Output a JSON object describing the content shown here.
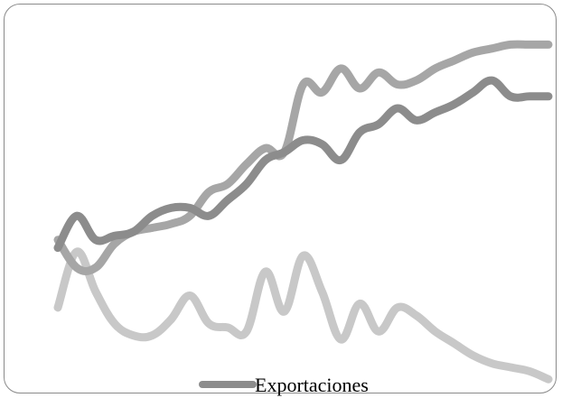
{
  "chart_data": {
    "type": "line",
    "title": "",
    "xlabel": "",
    "ylabel": "",
    "axes_visible": false,
    "grid": false,
    "legend_position": "bottom-center",
    "x": [
      1,
      2,
      3,
      4,
      5,
      6,
      7,
      8,
      9,
      10,
      11,
      12,
      13,
      14,
      15,
      16,
      17,
      18,
      19,
      20,
      21,
      22,
      23,
      24,
      25,
      26,
      27
    ],
    "ylim": [
      0,
      410
    ],
    "series": [
      {
        "name": "Exportaciones",
        "color": "#8c8c8c",
        "values": [
          150,
          190,
          160,
          165,
          170,
          190,
          200,
          200,
          190,
          210,
          230,
          260,
          270,
          285,
          280,
          260,
          295,
          305,
          325,
          310,
          320,
          330,
          345,
          360,
          340,
          340,
          340
        ]
      },
      {
        "name": "",
        "color": "#a6a6a6",
        "values": [
          160,
          125,
          125,
          155,
          170,
          175,
          180,
          190,
          220,
          230,
          255,
          275,
          270,
          355,
          345,
          375,
          350,
          370,
          355,
          360,
          375,
          385,
          395,
          400,
          405,
          405,
          405
        ]
      },
      {
        "name": "",
        "color": "#c8c8c8",
        "values": [
          75,
          145,
          95,
          55,
          40,
          40,
          60,
          90,
          55,
          50,
          45,
          120,
          70,
          140,
          95,
          35,
          80,
          45,
          75,
          65,
          45,
          30,
          15,
          5,
          0,
          -5,
          -15
        ]
      }
    ]
  }
}
